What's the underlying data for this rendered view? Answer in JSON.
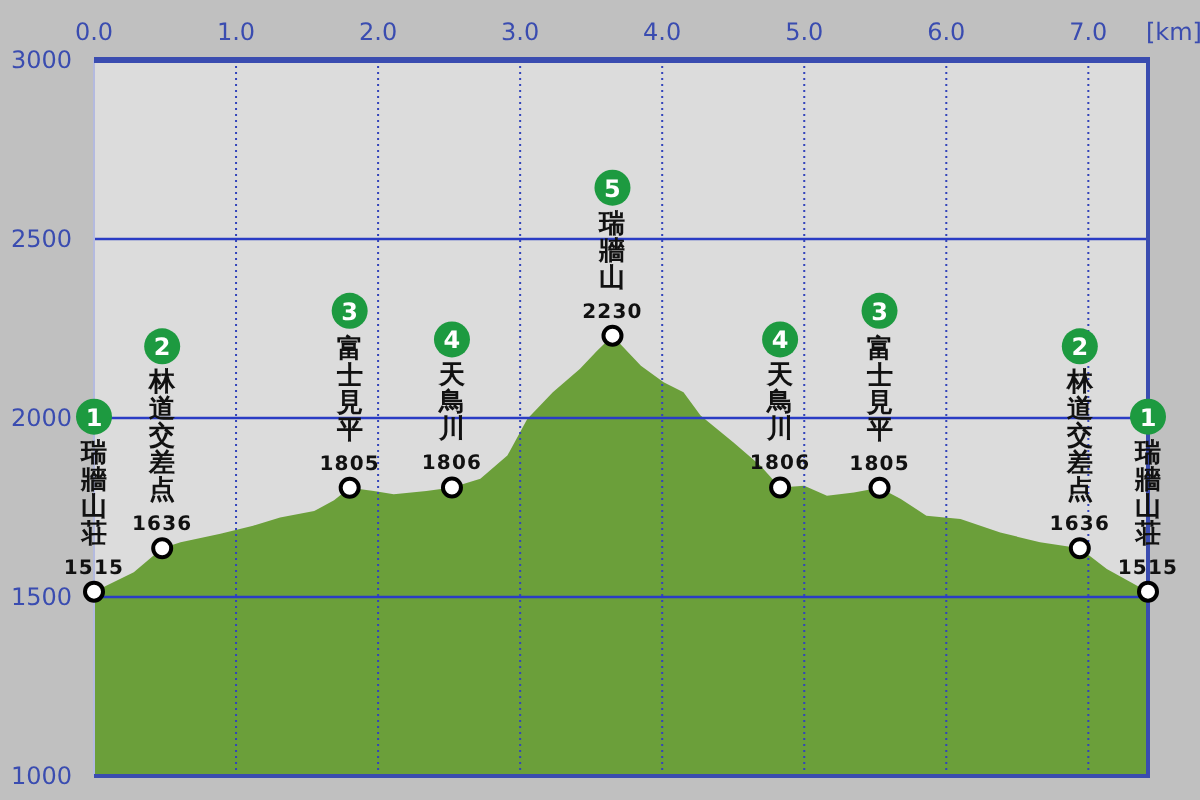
{
  "chart_data": {
    "type": "area",
    "xlabel": "[km]",
    "xlim": [
      0,
      7.42
    ],
    "xticks": [
      {
        "value": 0,
        "label": "0.0"
      },
      {
        "value": 1,
        "label": "1.0"
      },
      {
        "value": 2,
        "label": "2.0"
      },
      {
        "value": 3,
        "label": "3.0"
      },
      {
        "value": 4,
        "label": "4.0"
      },
      {
        "value": 5,
        "label": "5.0"
      },
      {
        "value": 6,
        "label": "6.0"
      },
      {
        "value": 7,
        "label": "7.0"
      }
    ],
    "ylim": [
      1000,
      3000
    ],
    "yticks": [
      1000,
      1500,
      2000,
      2500,
      3000
    ],
    "grid": true,
    "series": [
      {
        "color": "#6b9f3a",
        "x": [
          0,
          0.28,
          0.48,
          0.61,
          0.89,
          1.12,
          1.31,
          1.55,
          1.69,
          1.8,
          1.97,
          2.11,
          2.34,
          2.52,
          2.72,
          2.91,
          3.05,
          3.23,
          3.42,
          3.54,
          3.65,
          3.85,
          4.01,
          4.15,
          4.27,
          4.5,
          4.69,
          4.83,
          5.0,
          5.16,
          5.35,
          5.53,
          5.68,
          5.86,
          6.1,
          6.38,
          6.66,
          6.94,
          7.13,
          7.42
        ],
        "values": [
          1515,
          1569,
          1636,
          1653,
          1677,
          1699,
          1722,
          1740,
          1770,
          1805,
          1796,
          1787,
          1796,
          1806,
          1830,
          1895,
          1997,
          2072,
          2137,
          2187,
          2230,
          2146,
          2100,
          2072,
          2007,
          1932,
          1867,
          1806,
          1811,
          1783,
          1792,
          1805,
          1774,
          1727,
          1718,
          1680,
          1653,
          1636,
          1578,
          1515
        ]
      },
      {
        "type": "scatter",
        "color": "#ffffff",
        "marker": "circle",
        "x": [
          0,
          0.48,
          1.8,
          2.52,
          3.65,
          4.83,
          5.53,
          6.94,
          7.42
        ],
        "values": [
          1515,
          1636,
          1805,
          1806,
          2230,
          1806,
          1805,
          1636,
          1515
        ],
        "value_labels": [
          "1515",
          "1636",
          "1805",
          "1806",
          "2230",
          "1806",
          "1805",
          "1636",
          "1515"
        ]
      }
    ],
    "annotations": [
      "1",
      {
        "text": "瑞牆山荘",
        "x": 0,
        "y": 1515
      },
      "2",
      {
        "text": "林道交差点",
        "x": 0.48,
        "y": 1636
      },
      "3",
      {
        "text": "富士見平",
        "x": 1.8,
        "y": 1805
      },
      "4",
      {
        "text": "天鳥川",
        "x": 2.52,
        "y": 1806
      },
      "5",
      {
        "text": "瑞牆山",
        "x": 3.65,
        "y": 2230
      },
      "4",
      {
        "text": "天鳥川",
        "x": 4.83,
        "y": 1806
      },
      "3",
      {
        "text": "富士見平",
        "x": 5.53,
        "y": 1805
      },
      "2",
      {
        "text": "林道交差点",
        "x": 6.94,
        "y": 1636
      },
      "1",
      {
        "text": "瑞牆山荘",
        "x": 7.42,
        "y": 1515
      }
    ]
  }
}
